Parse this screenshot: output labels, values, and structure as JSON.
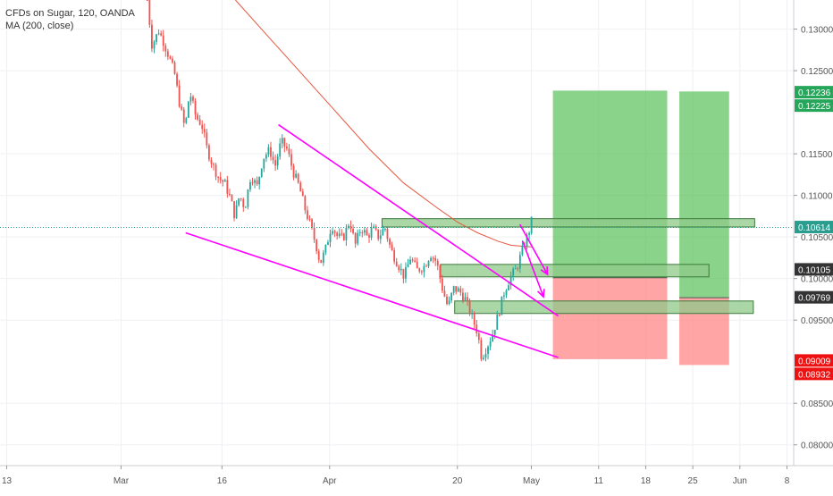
{
  "legend": {
    "symbol_line": "CFDs on Sugar, 120, OANDA",
    "indicator_line": "MA (200, close)"
  },
  "colors": {
    "candle_up": "#26a69a",
    "candle_down": "#ef5350",
    "ma_line": "#e8553e",
    "trendline": "#ff00ff",
    "zone_fill": "#8fc98a",
    "zone_stroke": "#3c7a3c",
    "target_fill": "#4cbb4c",
    "stop_fill": "#ff7f7f",
    "grid": "#eef0f3",
    "axis_text": "#555555",
    "price_line": "#2a9d8f"
  },
  "chart_data": {
    "type": "candlestick",
    "symbol": "CFDs on Sugar",
    "interval": "120",
    "source": "OANDA",
    "ylim": [
      0.0775,
      0.1335
    ],
    "x_ticks": [
      "13",
      "Mar",
      "16",
      "Apr",
      "20",
      "May",
      "11",
      "18",
      "25",
      "Jun",
      "8"
    ],
    "x_tick_days": [
      -17,
      0,
      15,
      31,
      50,
      61,
      71,
      78,
      85,
      92,
      99
    ],
    "xlim": [
      -18,
      100
    ],
    "y_ticks": [
      "0.13000",
      "0.12500",
      "0.11500",
      "0.11000",
      "0.10500",
      "0.10000",
      "0.09500",
      "0.08500",
      "0.08000"
    ],
    "y_tick_values": [
      0.13,
      0.125,
      0.115,
      0.11,
      0.105,
      0.1,
      0.095,
      0.085,
      0.08
    ],
    "price_tags": [
      {
        "label": "0.12236",
        "value": 0.12236,
        "color": "#26a65a"
      },
      {
        "label": "0.12225",
        "value": 0.12225,
        "color": "#26a65a"
      },
      {
        "label": "0.10614",
        "value": 0.10614,
        "color": "#2a9d8f"
      },
      {
        "label": "0.10105",
        "value": 0.10105,
        "color": "#333333"
      },
      {
        "label": "0.09769",
        "value": 0.09769,
        "color": "#333333"
      },
      {
        "label": "0.09009",
        "value": 0.09009,
        "color": "#ee1111"
      },
      {
        "label": "0.08932",
        "value": 0.08932,
        "color": "#ee1111"
      }
    ],
    "candle_path": [
      [
        3.9,
        0.1335
      ],
      [
        4.6,
        0.128
      ],
      [
        5.6,
        0.1298
      ],
      [
        6.3,
        0.1285
      ],
      [
        7.2,
        0.1265
      ],
      [
        8.0,
        0.1245
      ],
      [
        8.7,
        0.121
      ],
      [
        9.5,
        0.118
      ],
      [
        10.2,
        0.1225
      ],
      [
        11.1,
        0.1195
      ],
      [
        12.0,
        0.1185
      ],
      [
        12.8,
        0.1155
      ],
      [
        13.7,
        0.1135
      ],
      [
        14.6,
        0.112
      ],
      [
        15.4,
        0.1115
      ],
      [
        16.3,
        0.1095
      ],
      [
        16.9,
        0.1075
      ],
      [
        17.6,
        0.11
      ],
      [
        18.4,
        0.1085
      ],
      [
        19.3,
        0.1125
      ],
      [
        20.2,
        0.111
      ],
      [
        21.1,
        0.1145
      ],
      [
        22.1,
        0.1155
      ],
      [
        22.9,
        0.1135
      ],
      [
        23.8,
        0.1165
      ],
      [
        24.7,
        0.1155
      ],
      [
        25.6,
        0.1128
      ],
      [
        26.5,
        0.111
      ],
      [
        27.3,
        0.1085
      ],
      [
        28.1,
        0.1065
      ],
      [
        29.0,
        0.104
      ],
      [
        29.6,
        0.1018
      ],
      [
        30.4,
        0.1035
      ],
      [
        31.3,
        0.1065
      ],
      [
        32.2,
        0.105
      ],
      [
        33.0,
        0.1048
      ],
      [
        34.0,
        0.107
      ],
      [
        34.8,
        0.104
      ],
      [
        35.7,
        0.1062
      ],
      [
        36.6,
        0.105
      ],
      [
        37.4,
        0.106
      ],
      [
        38.3,
        0.105
      ],
      [
        39.2,
        0.1062
      ],
      [
        40.1,
        0.1035
      ],
      [
        41.0,
        0.102
      ],
      [
        42.1,
        0.1002
      ],
      [
        43.0,
        0.1025
      ],
      [
        44.0,
        0.101
      ],
      [
        45.1,
        0.1015
      ],
      [
        46.0,
        0.103
      ],
      [
        46.9,
        0.102
      ],
      [
        47.7,
        0.099
      ],
      [
        48.6,
        0.0965
      ],
      [
        49.4,
        0.0988
      ],
      [
        50.3,
        0.0985
      ],
      [
        51.2,
        0.0975
      ],
      [
        52.1,
        0.0955
      ],
      [
        53.0,
        0.0935
      ],
      [
        53.6,
        0.0905
      ],
      [
        54.5,
        0.092
      ],
      [
        55.3,
        0.0935
      ],
      [
        56.2,
        0.096
      ],
      [
        57.0,
        0.0985
      ],
      [
        57.9,
        0.1002
      ],
      [
        58.8,
        0.1012
      ],
      [
        59.7,
        0.1035
      ],
      [
        60.6,
        0.1055
      ],
      [
        61.2,
        0.1075
      ]
    ],
    "ma_200": [
      [
        17.0,
        0.1335
      ],
      [
        22.0,
        0.129
      ],
      [
        27.0,
        0.1245
      ],
      [
        32.0,
        0.12
      ],
      [
        37.0,
        0.1155
      ],
      [
        42.0,
        0.1115
      ],
      [
        47.0,
        0.1085
      ],
      [
        50.0,
        0.1068
      ],
      [
        53.0,
        0.1055
      ],
      [
        56.0,
        0.1045
      ],
      [
        58.0,
        0.104
      ],
      [
        61.0,
        0.1038
      ]
    ],
    "trendlines": [
      {
        "from": [
          9.6,
          0.1055
        ],
        "to": [
          65.0,
          0.0905
        ]
      },
      {
        "from": [
          23.4,
          0.1185
        ],
        "to": [
          65.0,
          0.0955
        ]
      },
      {
        "from": [
          59.3,
          0.1065
        ],
        "to": [
          63.4,
          0.1005
        ]
      },
      {
        "from": [
          59.7,
          0.1045
        ],
        "to": [
          62.8,
          0.0978
        ]
      }
    ],
    "zones": [
      {
        "from_day": 38.8,
        "to_day": 94.2,
        "low": 0.1062,
        "high": 0.1072
      },
      {
        "from_day": 47.5,
        "to_day": 87.4,
        "low": 0.1002,
        "high": 0.1017
      },
      {
        "from_day": 49.6,
        "to_day": 94.0,
        "low": 0.0958,
        "high": 0.0973
      }
    ],
    "positions": [
      {
        "from_day": 64.2,
        "to_day": 81.2,
        "entry": 0.1001,
        "target": 0.1226,
        "stop": 0.0903
      },
      {
        "from_day": 83.0,
        "to_day": 90.4,
        "entry": 0.0977,
        "target": 0.1225,
        "stop": 0.0896
      }
    ],
    "last_price": 0.10614
  }
}
